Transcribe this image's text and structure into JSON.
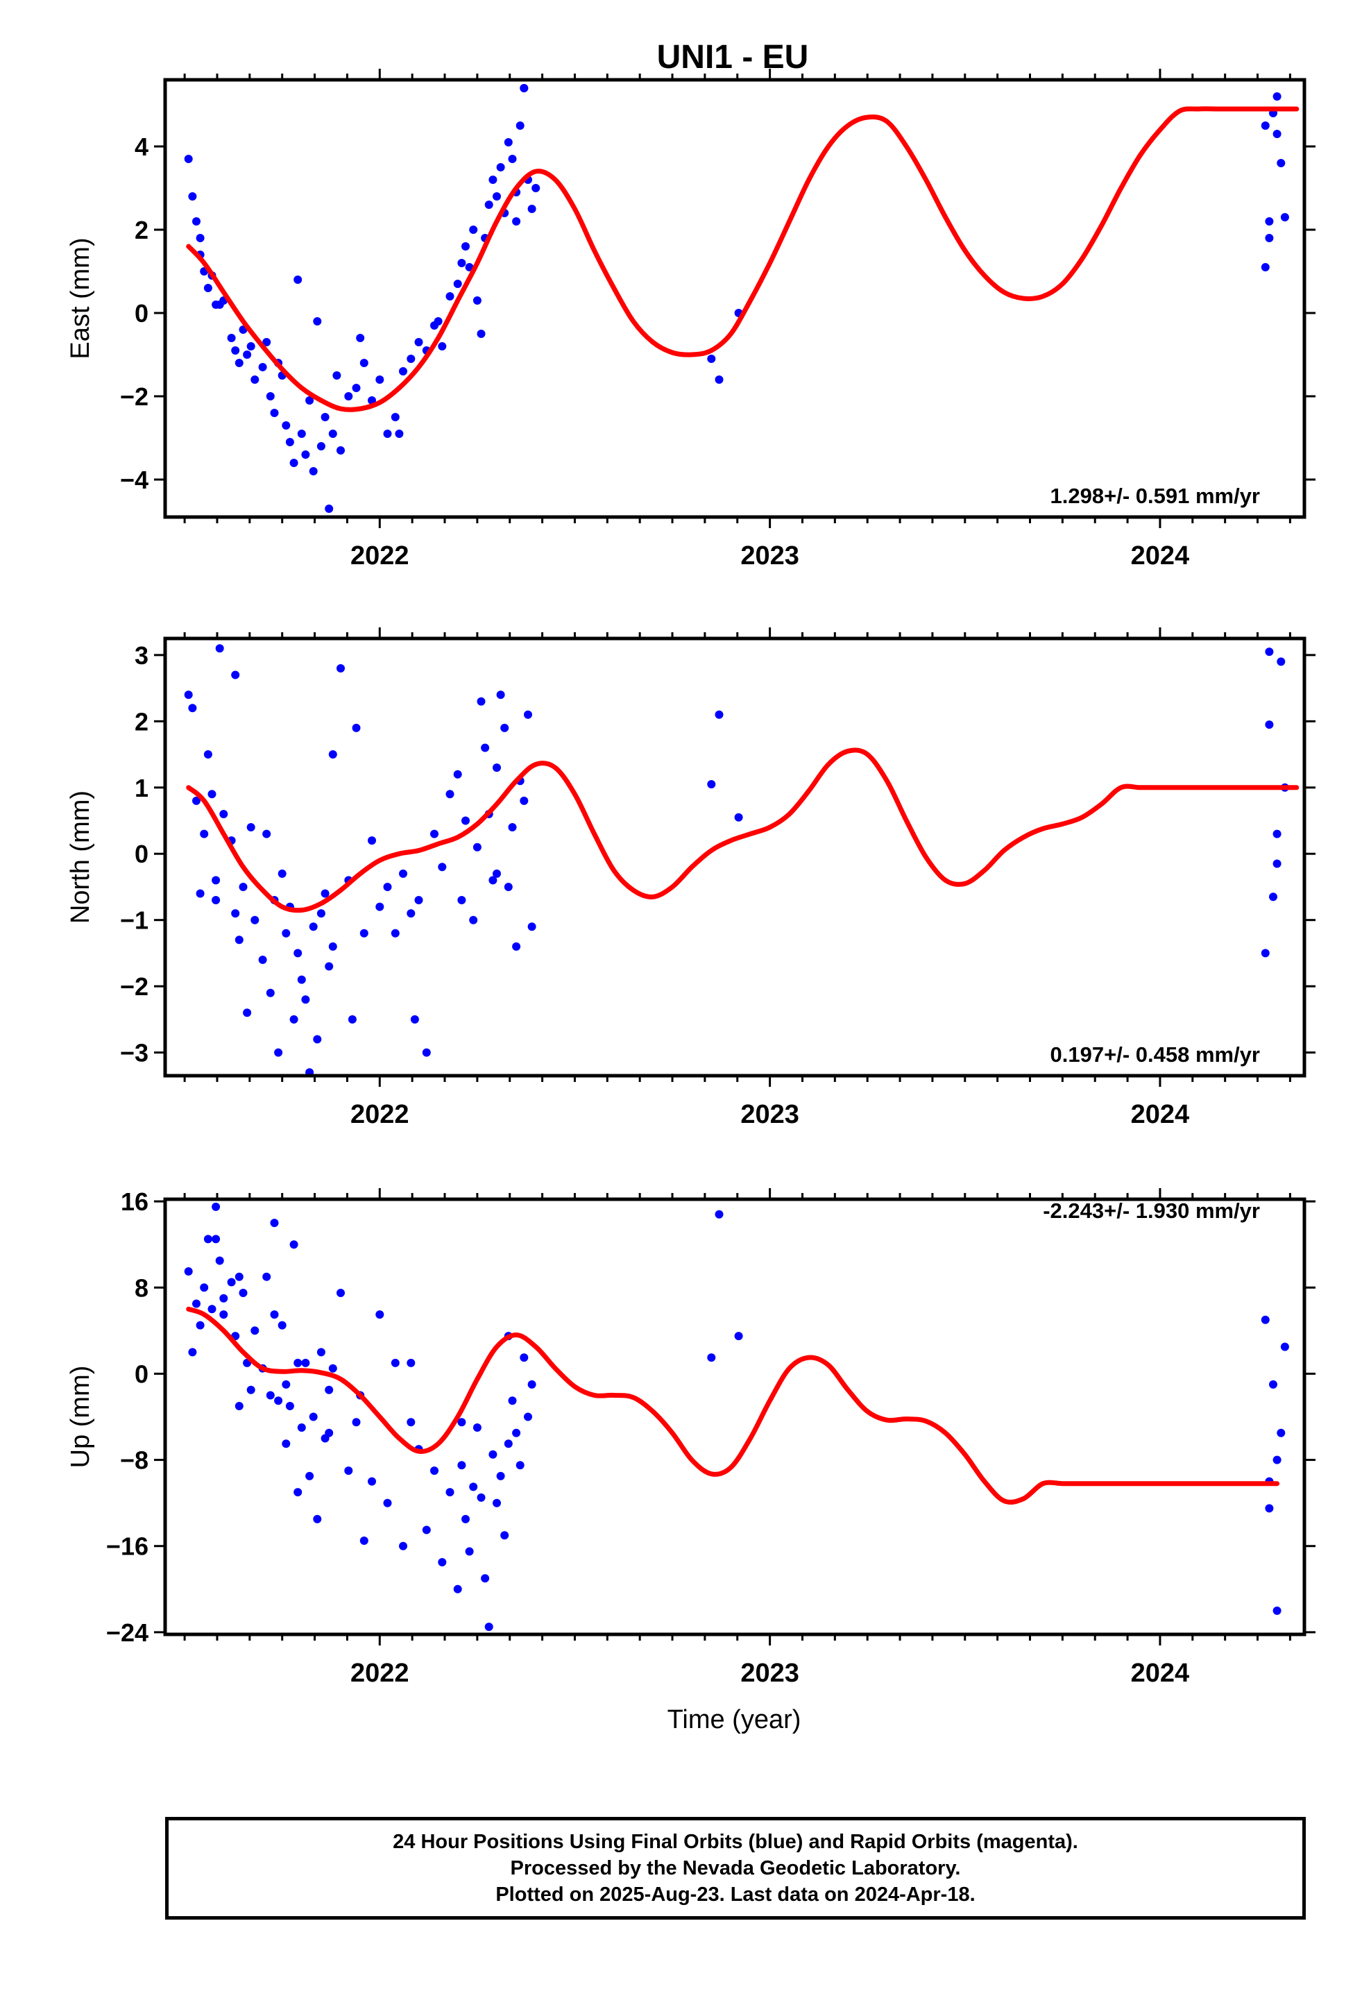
{
  "title": "UNI1 - EU",
  "xlabel": "Time (year)",
  "colors": {
    "points": "#0000ff",
    "fit": "#ff0000",
    "axis": "#000000"
  },
  "footer": {
    "line1": "24 Hour Positions Using Final Orbits (blue) and Rapid Orbits (magenta).",
    "line2": "Processed by the Nevada Geodetic Laboratory.",
    "line3": "Plotted on 2025-Aug-23. Last data on 2024-Apr-18."
  },
  "chart_data": [
    {
      "type": "scatter",
      "ylabel": "East (mm)",
      "rate_label": "1.298+/- 0.591 mm/yr",
      "xlim": [
        2021.45,
        2024.37
      ],
      "ylim": [
        -4.9,
        5.6
      ],
      "x_ticks": [
        2022,
        2023,
        2024
      ],
      "y_ticks": [
        -4,
        -2,
        0,
        2,
        4
      ],
      "y_tick_labels": [
        "−4",
        "−2",
        "0",
        "2",
        "4"
      ],
      "grid": false,
      "series": [
        {
          "kind": "points",
          "x": [
            2021.51,
            2021.52,
            2021.53,
            2021.54,
            2021.55,
            2021.56,
            2021.57,
            2021.58,
            2021.6,
            2021.62,
            2021.63,
            2021.64,
            2021.66,
            2021.67,
            2021.68,
            2021.7,
            2021.71,
            2021.72,
            2021.73,
            2021.75,
            2021.76,
            2021.77,
            2021.78,
            2021.8,
            2021.81,
            2021.82,
            2021.83,
            2021.85,
            2021.86,
            2021.87,
            2021.88,
            2021.9,
            2021.92,
            2021.94,
            2021.96,
            2021.98,
            2022.0,
            2022.02,
            2022.04,
            2022.06,
            2022.08,
            2022.1,
            2022.12,
            2022.14,
            2022.16,
            2022.18,
            2022.2,
            2022.21,
            2022.22,
            2022.24,
            2022.25,
            2022.26,
            2022.27,
            2022.28,
            2022.29,
            2022.3,
            2022.31,
            2022.32,
            2022.33,
            2022.34,
            2022.35,
            2022.36,
            2022.37,
            2022.38,
            2022.39,
            2022.4,
            2021.54,
            2021.59,
            2021.65,
            2021.74,
            2021.79,
            2021.84,
            2021.89,
            2021.95,
            2022.05,
            2022.15,
            2022.23,
            2022.35,
            2022.37,
            2022.85,
            2022.87,
            2022.92,
            2024.27,
            2024.28,
            2024.29,
            2024.3,
            2024.31,
            2024.32,
            2024.27,
            2024.28,
            2024.3
          ],
          "y": [
            3.7,
            2.8,
            2.2,
            1.4,
            1.0,
            0.6,
            0.9,
            0.2,
            0.3,
            -0.6,
            -0.9,
            -1.2,
            -1.0,
            -0.8,
            -1.6,
            -1.3,
            -0.7,
            -2.0,
            -2.4,
            -1.5,
            -2.7,
            -3.1,
            -3.6,
            -2.9,
            -3.4,
            -2.1,
            -3.8,
            -3.2,
            -2.5,
            -4.7,
            -2.9,
            -3.3,
            -2.0,
            -1.8,
            -1.2,
            -2.1,
            -1.6,
            -2.9,
            -2.5,
            -1.4,
            -1.1,
            -0.7,
            -0.9,
            -0.3,
            -0.8,
            0.4,
            0.7,
            1.2,
            1.6,
            2.0,
            0.3,
            -0.5,
            1.8,
            2.6,
            3.2,
            2.8,
            3.5,
            2.4,
            4.1,
            3.7,
            2.9,
            4.5,
            5.4,
            3.2,
            2.5,
            3.0,
            1.8,
            0.2,
            -0.4,
            -1.2,
            0.8,
            -0.2,
            -1.5,
            -0.6,
            -2.9,
            -0.2,
            1.1,
            2.2,
            5.4,
            -1.1,
            -1.6,
            0.0,
            1.1,
            2.2,
            4.8,
            5.2,
            3.6,
            2.3,
            4.5,
            1.8,
            4.3
          ],
          "note": "Final Orbits (blue)"
        },
        {
          "kind": "fit",
          "x": [
            2021.51,
            2021.55,
            2021.6,
            2021.65,
            2021.7,
            2021.75,
            2021.8,
            2021.85,
            2021.9,
            2021.95,
            2022.0,
            2022.05,
            2022.1,
            2022.15,
            2022.2,
            2022.25,
            2022.3,
            2022.35,
            2022.4,
            2022.45,
            2022.5,
            2022.55,
            2022.6,
            2022.65,
            2022.7,
            2022.75,
            2022.8,
            2022.85,
            2022.9,
            2022.95,
            2023.0,
            2023.05,
            2023.1,
            2023.15,
            2023.2,
            2023.25,
            2023.3,
            2023.35,
            2023.4,
            2023.45,
            2023.5,
            2023.55,
            2023.6,
            2023.65,
            2023.7,
            2023.75,
            2023.8,
            2023.85,
            2023.9,
            2023.95,
            2024.0,
            2024.05,
            2024.1,
            2024.15,
            2024.2,
            2024.25,
            2024.3,
            2024.35
          ],
          "y": [
            1.6,
            1.2,
            0.5,
            -0.2,
            -0.8,
            -1.35,
            -1.8,
            -2.1,
            -2.3,
            -2.3,
            -2.15,
            -1.8,
            -1.3,
            -0.6,
            0.3,
            1.2,
            2.2,
            3.0,
            3.4,
            3.2,
            2.5,
            1.5,
            0.6,
            -0.2,
            -0.7,
            -0.95,
            -1.0,
            -0.9,
            -0.5,
            0.3,
            1.2,
            2.2,
            3.2,
            4.0,
            4.5,
            4.7,
            4.6,
            4.0,
            3.2,
            2.3,
            1.5,
            0.9,
            0.5,
            0.35,
            0.4,
            0.7,
            1.3,
            2.1,
            3.0,
            3.8,
            4.4,
            4.85,
            4.9,
            4.9,
            4.9,
            4.9,
            4.9,
            4.9
          ]
        }
      ]
    },
    {
      "type": "scatter",
      "ylabel": "North (mm)",
      "rate_label": "0.197+/- 0.458 mm/yr",
      "xlim": [
        2021.45,
        2024.37
      ],
      "ylim": [
        -3.35,
        3.25
      ],
      "x_ticks": [
        2022,
        2023,
        2024
      ],
      "y_ticks": [
        -3,
        -2,
        -1,
        0,
        1,
        2,
        3
      ],
      "y_tick_labels": [
        "−3",
        "−2",
        "−1",
        "0",
        "1",
        "2",
        "3"
      ],
      "grid": false,
      "series": [
        {
          "kind": "points",
          "x": [
            2021.51,
            2021.52,
            2021.53,
            2021.54,
            2021.55,
            2021.56,
            2021.57,
            2021.58,
            2021.59,
            2021.6,
            2021.62,
            2021.63,
            2021.64,
            2021.65,
            2021.66,
            2021.67,
            2021.68,
            2021.7,
            2021.71,
            2021.72,
            2021.73,
            2021.74,
            2021.75,
            2021.76,
            2021.77,
            2021.78,
            2021.79,
            2021.8,
            2021.81,
            2021.82,
            2021.83,
            2021.84,
            2021.85,
            2021.86,
            2021.87,
            2021.88,
            2021.9,
            2021.92,
            2021.94,
            2021.96,
            2021.98,
            2022.0,
            2022.02,
            2022.04,
            2022.06,
            2022.08,
            2022.1,
            2022.12,
            2022.14,
            2022.16,
            2022.18,
            2022.2,
            2022.21,
            2022.22,
            2022.24,
            2022.25,
            2022.26,
            2022.27,
            2022.28,
            2022.29,
            2022.3,
            2022.31,
            2022.32,
            2022.33,
            2022.34,
            2022.35,
            2022.36,
            2022.37,
            2022.38,
            2022.39,
            2021.58,
            2021.63,
            2021.88,
            2021.93,
            2022.09,
            2022.3,
            2022.85,
            2022.87,
            2022.92,
            2024.27,
            2024.28,
            2024.29,
            2024.3,
            2024.31,
            2024.32,
            2024.28,
            2024.3
          ],
          "y": [
            2.4,
            2.2,
            0.8,
            -0.6,
            0.3,
            1.5,
            0.9,
            -0.4,
            3.1,
            0.6,
            0.2,
            -0.9,
            -1.3,
            -0.5,
            -2.4,
            0.4,
            -1.0,
            -1.6,
            0.3,
            -2.1,
            -0.7,
            -3.0,
            -0.3,
            -1.2,
            -0.8,
            -2.5,
            -1.5,
            -1.9,
            -2.2,
            -3.3,
            -1.1,
            -2.8,
            -0.9,
            -0.6,
            -1.7,
            -1.4,
            2.8,
            -0.4,
            1.9,
            -1.2,
            0.2,
            -0.8,
            -0.5,
            -1.2,
            -0.3,
            -0.9,
            -0.7,
            -3.0,
            0.3,
            -0.2,
            0.9,
            1.2,
            -0.7,
            0.5,
            -1.0,
            0.1,
            2.3,
            1.6,
            0.6,
            -0.4,
            1.3,
            2.4,
            1.9,
            -0.5,
            0.4,
            -1.4,
            1.1,
            0.8,
            2.1,
            -1.1,
            -0.7,
            2.7,
            1.5,
            -2.5,
            -2.5,
            -0.3,
            1.05,
            2.1,
            0.55,
            -1.5,
            3.05,
            -0.65,
            0.3,
            2.9,
            1.0,
            1.95,
            -0.15
          ],
          "note": "Final Orbits (blue)"
        },
        {
          "kind": "fit",
          "x": [
            2021.51,
            2021.55,
            2021.6,
            2021.65,
            2021.7,
            2021.75,
            2021.8,
            2021.85,
            2021.9,
            2021.95,
            2022.0,
            2022.05,
            2022.1,
            2022.15,
            2022.2,
            2022.25,
            2022.3,
            2022.35,
            2022.4,
            2022.45,
            2022.5,
            2022.55,
            2022.6,
            2022.65,
            2022.7,
            2022.75,
            2022.8,
            2022.85,
            2022.9,
            2022.95,
            2023.0,
            2023.05,
            2023.1,
            2023.15,
            2023.2,
            2023.25,
            2023.3,
            2023.35,
            2023.4,
            2023.45,
            2023.5,
            2023.55,
            2023.6,
            2023.65,
            2023.7,
            2023.75,
            2023.8,
            2023.85,
            2023.9,
            2023.95,
            2024.0,
            2024.05,
            2024.1,
            2024.15,
            2024.2,
            2024.25,
            2024.3,
            2024.35
          ],
          "y": [
            1.0,
            0.8,
            0.3,
            -0.2,
            -0.55,
            -0.8,
            -0.85,
            -0.75,
            -0.55,
            -0.3,
            -0.1,
            0.0,
            0.05,
            0.15,
            0.25,
            0.45,
            0.75,
            1.1,
            1.35,
            1.3,
            0.9,
            0.3,
            -0.25,
            -0.55,
            -0.65,
            -0.5,
            -0.2,
            0.05,
            0.2,
            0.3,
            0.4,
            0.6,
            0.95,
            1.35,
            1.55,
            1.5,
            1.1,
            0.5,
            -0.05,
            -0.4,
            -0.45,
            -0.25,
            0.05,
            0.25,
            0.38,
            0.45,
            0.55,
            0.75,
            1.0,
            1.0,
            1.0,
            1.0,
            1.0,
            1.0,
            1.0,
            1.0,
            1.0,
            1.0
          ]
        }
      ]
    },
    {
      "type": "scatter",
      "ylabel": "Up (mm)",
      "rate_label": "-2.243+/- 1.930 mm/yr",
      "xlim": [
        2021.45,
        2024.37
      ],
      "ylim": [
        -24.2,
        16.2
      ],
      "x_ticks": [
        2022,
        2023,
        2024
      ],
      "y_ticks": [
        -24,
        -16,
        -8,
        0,
        8,
        16
      ],
      "y_tick_labels": [
        "−24",
        "−16",
        "−8",
        "0",
        "8",
        "16"
      ],
      "grid": false,
      "series": [
        {
          "kind": "points",
          "x": [
            2021.51,
            2021.52,
            2021.53,
            2021.54,
            2021.55,
            2021.56,
            2021.57,
            2021.58,
            2021.59,
            2021.6,
            2021.62,
            2021.63,
            2021.64,
            2021.65,
            2021.66,
            2021.67,
            2021.68,
            2021.7,
            2021.71,
            2021.72,
            2021.73,
            2021.74,
            2021.75,
            2021.76,
            2021.77,
            2021.78,
            2021.79,
            2021.8,
            2021.81,
            2021.82,
            2021.83,
            2021.84,
            2021.85,
            2021.86,
            2021.87,
            2021.88,
            2021.9,
            2021.92,
            2021.94,
            2021.96,
            2021.98,
            2022.0,
            2022.02,
            2022.04,
            2022.06,
            2022.08,
            2022.1,
            2022.12,
            2022.14,
            2022.16,
            2022.18,
            2022.2,
            2022.21,
            2022.22,
            2022.23,
            2022.24,
            2022.25,
            2022.26,
            2022.27,
            2022.28,
            2022.29,
            2022.3,
            2022.31,
            2022.32,
            2022.33,
            2022.34,
            2022.35,
            2022.36,
            2022.37,
            2022.38,
            2022.39,
            2021.58,
            2021.6,
            2021.64,
            2021.73,
            2021.76,
            2021.79,
            2021.87,
            2021.95,
            2022.08,
            2022.21,
            2022.33,
            2022.85,
            2022.87,
            2022.92,
            2024.27,
            2024.28,
            2024.29,
            2024.3,
            2024.31,
            2024.32,
            2024.28,
            2024.3
          ],
          "y": [
            9.5,
            2.0,
            6.5,
            4.5,
            8.0,
            12.5,
            6.0,
            15.5,
            10.5,
            5.5,
            8.5,
            3.5,
            -3.0,
            7.5,
            1.0,
            -1.5,
            4.0,
            0.5,
            9.0,
            -2.0,
            14.0,
            -2.5,
            4.5,
            -6.5,
            -3.0,
            12.0,
            -11.0,
            -5.0,
            1.0,
            -9.5,
            -4.0,
            -13.5,
            2.0,
            -6.0,
            -1.5,
            0.5,
            7.5,
            -9.0,
            -4.5,
            -15.5,
            -10.0,
            5.5,
            -12.0,
            1.0,
            -16.0,
            -4.5,
            -7.0,
            -14.5,
            -9.0,
            -17.5,
            -11.0,
            -20.0,
            -8.5,
            -13.5,
            -16.5,
            -10.5,
            -5.0,
            -11.5,
            -19.0,
            -23.5,
            -7.5,
            -12.0,
            -9.5,
            -15.0,
            3.5,
            -2.5,
            -5.5,
            -8.5,
            1.5,
            -4.0,
            -1.0,
            12.5,
            7.0,
            9.0,
            5.5,
            -1.0,
            1.0,
            -5.5,
            -2.0,
            1.0,
            -4.5,
            -6.5,
            1.5,
            14.8,
            3.5,
            5.0,
            -10.0,
            -1.0,
            -22.0,
            -5.5,
            2.5,
            -12.5,
            -8.0
          ],
          "note": "Final Orbits (blue)"
        },
        {
          "kind": "fit",
          "x": [
            2021.51,
            2021.55,
            2021.6,
            2021.65,
            2021.7,
            2021.75,
            2021.8,
            2021.85,
            2021.9,
            2021.95,
            2022.0,
            2022.05,
            2022.1,
            2022.15,
            2022.2,
            2022.25,
            2022.3,
            2022.35,
            2022.4,
            2022.45,
            2022.5,
            2022.55,
            2022.6,
            2022.65,
            2022.7,
            2022.75,
            2022.8,
            2022.85,
            2022.9,
            2022.95,
            2023.0,
            2023.05,
            2023.1,
            2023.15,
            2023.2,
            2023.25,
            2023.3,
            2023.35,
            2023.4,
            2023.45,
            2023.5,
            2023.55,
            2023.6,
            2023.65,
            2023.7,
            2023.75,
            2023.8,
            2023.85,
            2023.9,
            2023.95,
            2024.0,
            2024.05,
            2024.1,
            2024.15,
            2024.2,
            2024.25,
            2024.3
          ],
          "y": [
            6.0,
            5.5,
            4.0,
            2.0,
            0.5,
            0.2,
            0.3,
            0.1,
            -0.5,
            -2.0,
            -4.0,
            -6.0,
            -7.2,
            -6.5,
            -4.0,
            -0.5,
            2.5,
            3.6,
            2.5,
            0.5,
            -1.2,
            -2.0,
            -2.0,
            -2.2,
            -3.5,
            -5.5,
            -8.0,
            -9.3,
            -8.7,
            -6.0,
            -2.5,
            0.5,
            1.5,
            0.8,
            -1.5,
            -3.5,
            -4.3,
            -4.2,
            -4.4,
            -5.5,
            -7.5,
            -10.0,
            -11.8,
            -11.6,
            -10.2,
            -10.2,
            -10.2,
            -10.2,
            -10.2,
            -10.2,
            -10.2,
            -10.2,
            -10.2,
            -10.2,
            -10.2,
            -10.2,
            -10.2
          ]
        }
      ]
    }
  ]
}
